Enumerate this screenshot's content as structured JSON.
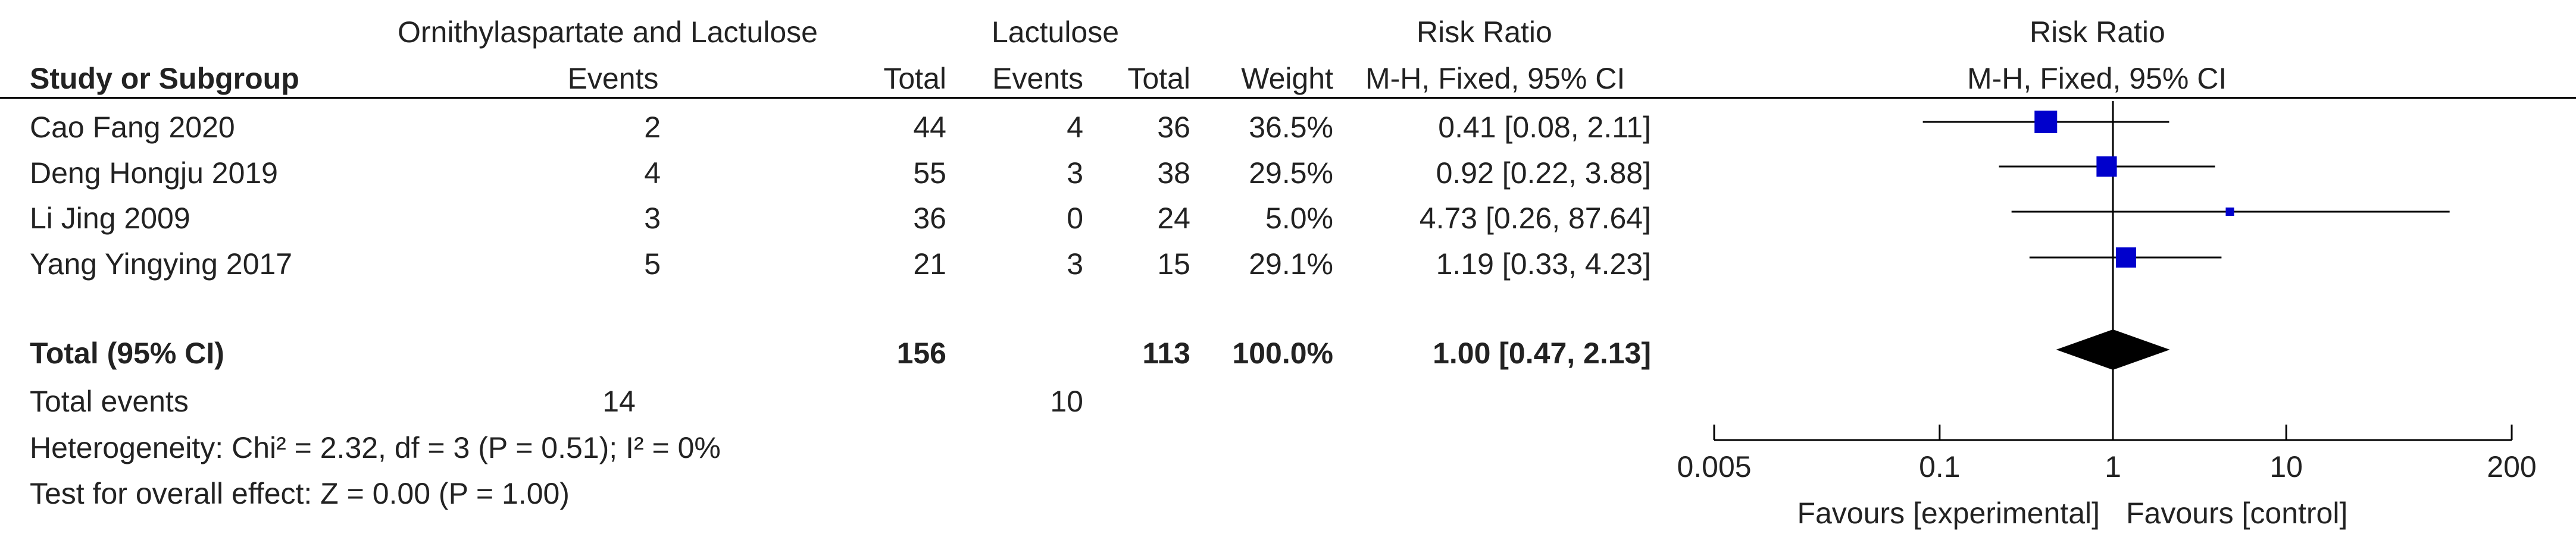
{
  "header": {
    "group_experimental": "Ornithylaspartate and Lactulose",
    "group_control": "Lactulose",
    "rr_title": "Risk Ratio",
    "plot_title": "Risk Ratio",
    "col_study": "Study or Subgroup",
    "col_events_e": "Events",
    "col_total_e": "Total",
    "col_events_c": "Events",
    "col_total_c": "Total",
    "col_weight": "Weight",
    "col_method": "M-H, Fixed, 95% CI",
    "plot_method": "M-H, Fixed, 95% CI"
  },
  "rows": [
    {
      "study": "Cao Fang 2020",
      "events_e": "2",
      "total_e": "44",
      "events_c": "4",
      "total_c": "36",
      "weight": "36.5%",
      "ci": "0.41 [0.08, 2.11]"
    },
    {
      "study": "Deng Hongju 2019",
      "events_e": "4",
      "total_e": "55",
      "events_c": "3",
      "total_c": "38",
      "weight": "29.5%",
      "ci": "0.92 [0.22, 3.88]"
    },
    {
      "study": "Li Jing 2009",
      "events_e": "3",
      "total_e": "36",
      "events_c": "0",
      "total_c": "24",
      "weight": "5.0%",
      "ci": "4.73 [0.26, 87.64]"
    },
    {
      "study": "Yang Yingying 2017",
      "events_e": "5",
      "total_e": "21",
      "events_c": "3",
      "total_c": "15",
      "weight": "29.1%",
      "ci": "1.19 [0.33, 4.23]"
    }
  ],
  "total": {
    "label": "Total (95% CI)",
    "total_e": "156",
    "total_c": "113",
    "weight": "100.0%",
    "ci": "1.00 [0.47, 2.13]"
  },
  "total_events": {
    "label": "Total events",
    "events_e": "14",
    "events_c": "10"
  },
  "heterogeneity": "Heterogeneity: Chi² = 2.32, df = 3 (P = 0.51); I² = 0%",
  "overall_effect": "Test for overall effect: Z = 0.00 (P = 1.00)",
  "chart_data": {
    "type": "forest",
    "x_scale": "log",
    "xlim": [
      0.005,
      200
    ],
    "ticks": [
      0.005,
      0.1,
      1,
      10,
      200
    ],
    "tick_labels": [
      "0.005",
      "0.1",
      "1",
      "10",
      "200"
    ],
    "favours_left": "Favours [experimental]",
    "favours_right": "Favours [control]",
    "studies": [
      {
        "name": "Cao Fang 2020",
        "rr": 0.41,
        "lower": 0.08,
        "upper": 2.11,
        "weight": 36.5
      },
      {
        "name": "Deng Hongju 2019",
        "rr": 0.92,
        "lower": 0.22,
        "upper": 3.88,
        "weight": 29.5
      },
      {
        "name": "Li Jing 2009",
        "rr": 4.73,
        "lower": 0.26,
        "upper": 87.64,
        "weight": 5.0
      },
      {
        "name": "Yang Yingying 2017",
        "rr": 1.19,
        "lower": 0.33,
        "upper": 4.23,
        "weight": 29.1
      }
    ],
    "pooled": {
      "rr": 1.0,
      "lower": 0.47,
      "upper": 2.13
    },
    "marker_color": "#0000cc"
  }
}
